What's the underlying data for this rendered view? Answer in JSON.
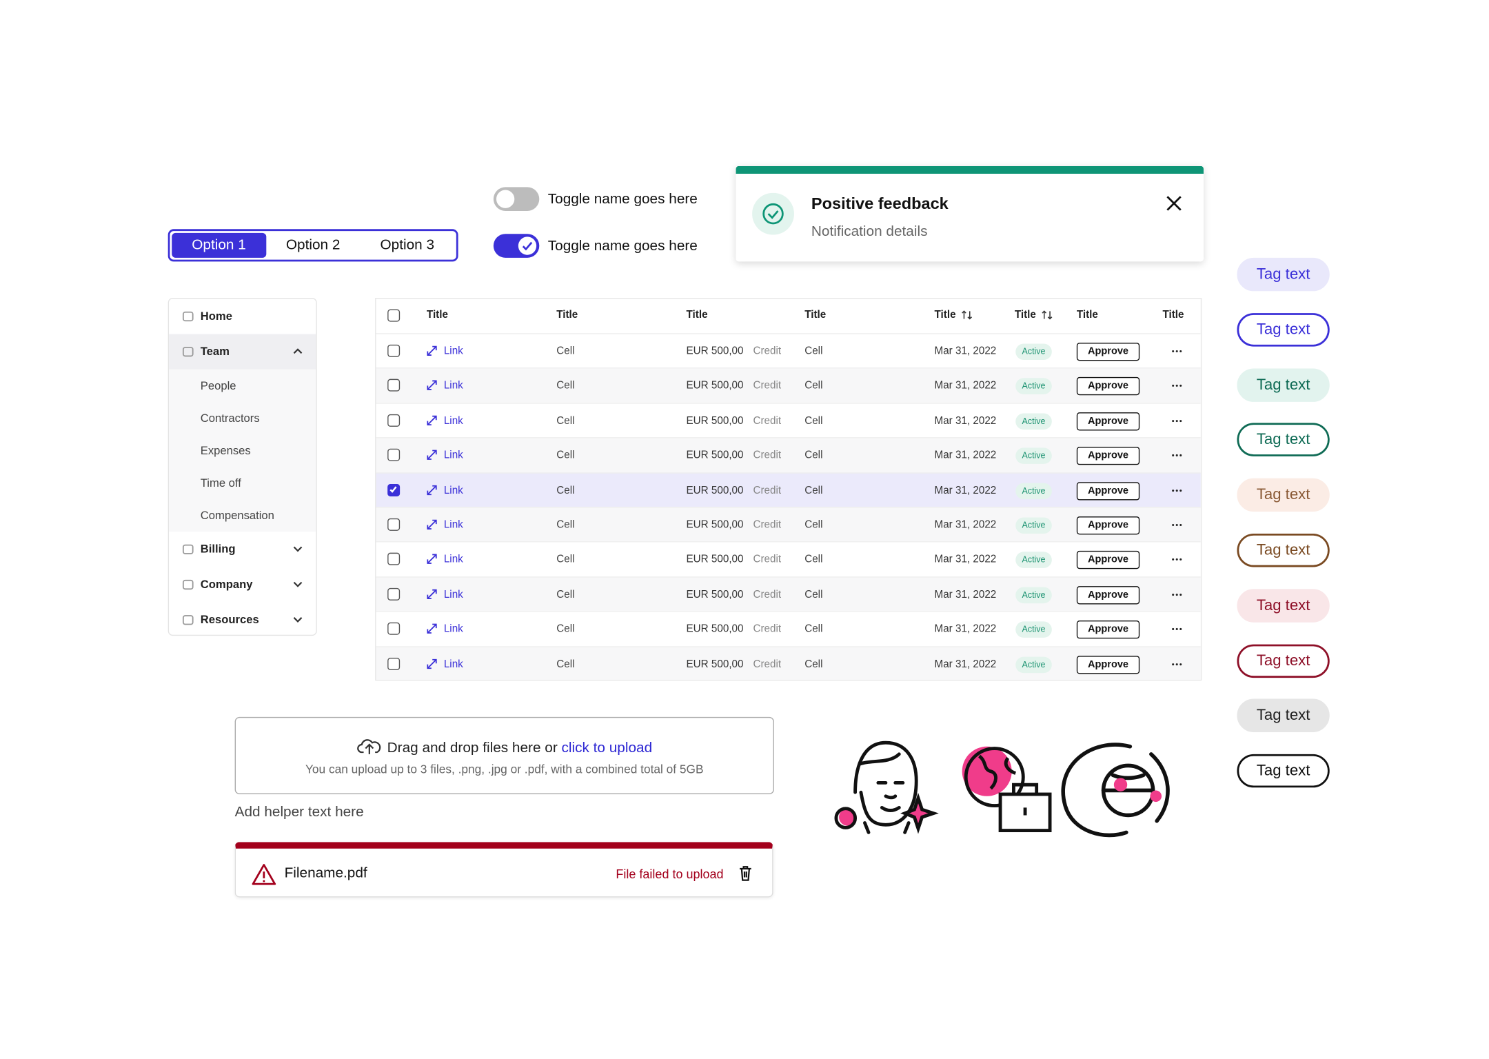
{
  "segmented": {
    "options": [
      "Option 1",
      "Option 2",
      "Option 3"
    ],
    "selected": 0
  },
  "toggles": [
    {
      "label": "Toggle name goes here",
      "on": false
    },
    {
      "label": "Toggle name goes here",
      "on": true
    }
  ],
  "notification": {
    "title": "Positive feedback",
    "details": "Notification details"
  },
  "sidebar": {
    "items": [
      {
        "label": "Home"
      },
      {
        "label": "Team",
        "expanded": true,
        "children": [
          "People",
          "Contractors",
          "Expenses",
          "Time off",
          "Compensation"
        ]
      },
      {
        "label": "Billing",
        "expanded": false
      },
      {
        "label": "Company",
        "expanded": false
      },
      {
        "label": "Resources",
        "expanded": false
      }
    ]
  },
  "table": {
    "headers": [
      {
        "label": "Title",
        "sortable": false
      },
      {
        "label": "Title",
        "sortable": false
      },
      {
        "label": "Title",
        "sortable": false
      },
      {
        "label": "Title",
        "sortable": false
      },
      {
        "label": "Title",
        "sortable": true
      },
      {
        "label": "Title",
        "sortable": true
      },
      {
        "label": "Title",
        "sortable": false
      },
      {
        "label": "Title",
        "sortable": false
      }
    ],
    "rows": [
      {
        "checked": false,
        "link": "Link",
        "cell1": "Cell",
        "amount": "EUR 500,00",
        "kind": "Credit",
        "cell2": "Cell",
        "date": "Mar 31, 2022",
        "status": "Active",
        "action": "Approve"
      },
      {
        "checked": false,
        "link": "Link",
        "cell1": "Cell",
        "amount": "EUR 500,00",
        "kind": "Credit",
        "cell2": "Cell",
        "date": "Mar 31, 2022",
        "status": "Active",
        "action": "Approve"
      },
      {
        "checked": false,
        "link": "Link",
        "cell1": "Cell",
        "amount": "EUR 500,00",
        "kind": "Credit",
        "cell2": "Cell",
        "date": "Mar 31, 2022",
        "status": "Active",
        "action": "Approve"
      },
      {
        "checked": false,
        "link": "Link",
        "cell1": "Cell",
        "amount": "EUR 500,00",
        "kind": "Credit",
        "cell2": "Cell",
        "date": "Mar 31, 2022",
        "status": "Active",
        "action": "Approve"
      },
      {
        "checked": true,
        "link": "Link",
        "cell1": "Cell",
        "amount": "EUR 500,00",
        "kind": "Credit",
        "cell2": "Cell",
        "date": "Mar 31, 2022",
        "status": "Active",
        "action": "Approve"
      },
      {
        "checked": false,
        "link": "Link",
        "cell1": "Cell",
        "amount": "EUR 500,00",
        "kind": "Credit",
        "cell2": "Cell",
        "date": "Mar 31, 2022",
        "status": "Active",
        "action": "Approve"
      },
      {
        "checked": false,
        "link": "Link",
        "cell1": "Cell",
        "amount": "EUR 500,00",
        "kind": "Credit",
        "cell2": "Cell",
        "date": "Mar 31, 2022",
        "status": "Active",
        "action": "Approve"
      },
      {
        "checked": false,
        "link": "Link",
        "cell1": "Cell",
        "amount": "EUR 500,00",
        "kind": "Credit",
        "cell2": "Cell",
        "date": "Mar 31, 2022",
        "status": "Active",
        "action": "Approve"
      },
      {
        "checked": false,
        "link": "Link",
        "cell1": "Cell",
        "amount": "EUR 500,00",
        "kind": "Credit",
        "cell2": "Cell",
        "date": "Mar 31, 2022",
        "status": "Active",
        "action": "Approve"
      },
      {
        "checked": false,
        "link": "Link",
        "cell1": "Cell",
        "amount": "EUR 500,00",
        "kind": "Credit",
        "cell2": "Cell",
        "date": "Mar 31, 2022",
        "status": "Active",
        "action": "Approve"
      }
    ]
  },
  "upload": {
    "prompt": "Drag and drop files here or",
    "link": "click to upload",
    "hint": "You can upload up to 3 files, .png, .jpg or .pdf, with a combined total of 5GB",
    "helper": "Add helper text here"
  },
  "error_file": {
    "name": "Filename.pdf",
    "message": "File failed to upload"
  },
  "tags": [
    "Tag text",
    "Tag text",
    "Tag text",
    "Tag text",
    "Tag text",
    "Tag text",
    "Tag text",
    "Tag text",
    "Tag text",
    "Tag text"
  ]
}
